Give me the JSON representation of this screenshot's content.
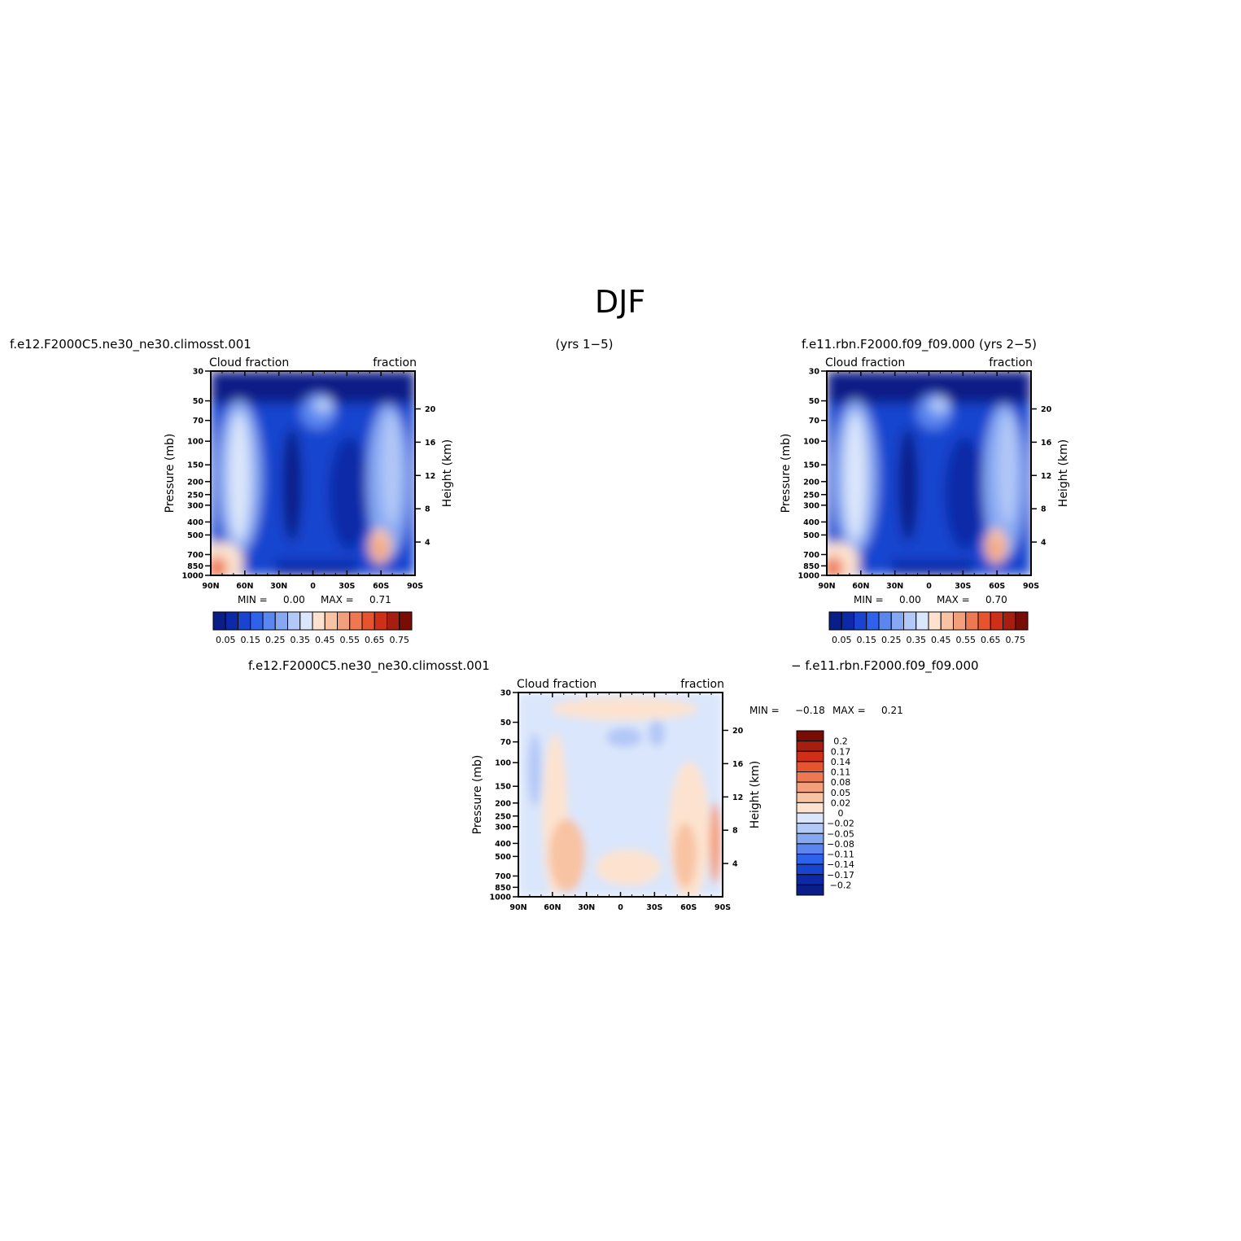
{
  "page_title": "DJF",
  "headers": {
    "left_case": "f.e12.F2000C5.ne30_ne30.climosst.001",
    "middle_years": "(yrs 1−5)",
    "right_case": "f.e11.rbn.F2000.f09_f09.000 (yrs 2−5)",
    "diff_left": "f.e12.F2000C5.ne30_ne30.climosst.001",
    "diff_right": "− f.e11.rbn.F2000.f09_f09.000"
  },
  "chart_data": [
    {
      "type": "heatmap",
      "panel": "case1",
      "left_label": "Cloud fraction",
      "right_label": "fraction",
      "ylabel": "Pressure (mb)",
      "y2label": "Height (km)",
      "x_ticks": [
        "90N",
        "60N",
        "30N",
        "0",
        "30S",
        "60S",
        "90S"
      ],
      "y_ticks": [
        "30",
        "50",
        "70",
        "100",
        "150",
        "200",
        "250",
        "300",
        "400",
        "500",
        "700",
        "850",
        "1000"
      ],
      "y2_ticks": [
        "20",
        "16",
        "12",
        "8",
        "4"
      ],
      "min_label": "MIN =",
      "min_value": "0.00",
      "max_label": "MAX =",
      "max_value": "0.71",
      "colorbar_labels": [
        "0.05",
        "0.15",
        "0.25",
        "0.35",
        "0.45",
        "0.55",
        "0.65",
        "0.75"
      ],
      "colorbar_colors": [
        "#0a1e87",
        "#0c2aa8",
        "#1844cf",
        "#2f62ea",
        "#5a86ef",
        "#86a8f2",
        "#b2c8f7",
        "#dae6fb",
        "#fde3cf",
        "#f8c3a3",
        "#f49f7b",
        "#ee7852",
        "#e6542f",
        "#ce2f16",
        "#a51e10",
        "#7a0c06"
      ]
    },
    {
      "type": "heatmap",
      "panel": "case2",
      "left_label": "Cloud fraction",
      "right_label": "fraction",
      "ylabel": "Pressure (mb)",
      "y2label": "Height (km)",
      "x_ticks": [
        "90N",
        "60N",
        "30N",
        "0",
        "30S",
        "60S",
        "90S"
      ],
      "y_ticks": [
        "30",
        "50",
        "70",
        "100",
        "150",
        "200",
        "250",
        "300",
        "400",
        "500",
        "700",
        "850",
        "1000"
      ],
      "y2_ticks": [
        "20",
        "16",
        "12",
        "8",
        "4"
      ],
      "min_label": "MIN =",
      "min_value": "0.00",
      "max_label": "MAX =",
      "max_value": "0.70",
      "colorbar_labels": [
        "0.05",
        "0.15",
        "0.25",
        "0.35",
        "0.45",
        "0.55",
        "0.65",
        "0.75"
      ],
      "colorbar_colors": [
        "#0a1e87",
        "#0c2aa8",
        "#1844cf",
        "#2f62ea",
        "#5a86ef",
        "#86a8f2",
        "#b2c8f7",
        "#dae6fb",
        "#fde3cf",
        "#f8c3a3",
        "#f49f7b",
        "#ee7852",
        "#e6542f",
        "#ce2f16",
        "#a51e10",
        "#7a0c06"
      ]
    },
    {
      "type": "heatmap",
      "panel": "difference",
      "left_label": "Cloud fraction",
      "right_label": "fraction",
      "ylabel": "Pressure (mb)",
      "y2label": "Height (km)",
      "x_ticks": [
        "90N",
        "60N",
        "30N",
        "0",
        "30S",
        "60S",
        "90S"
      ],
      "y_ticks": [
        "30",
        "50",
        "70",
        "100",
        "150",
        "200",
        "250",
        "300",
        "400",
        "500",
        "700",
        "850",
        "1000"
      ],
      "y2_ticks": [
        "20",
        "16",
        "12",
        "8",
        "4"
      ],
      "min_label": "MIN =",
      "min_value": "−0.18",
      "max_label": "MAX =",
      "max_value": "0.21",
      "colorbar_labels": [
        "0.2",
        "0.17",
        "0.14",
        "0.11",
        "0.08",
        "0.05",
        "0.02",
        "0",
        "−0.02",
        "−0.05",
        "−0.08",
        "−0.11",
        "−0.14",
        "−0.17",
        "−0.2"
      ],
      "colorbar_colors": [
        "#7a0c06",
        "#a51e10",
        "#ce2f16",
        "#e6542f",
        "#ee7852",
        "#f49f7b",
        "#f8c3a3",
        "#fde3cf",
        "#dae6fb",
        "#b2c8f7",
        "#86a8f2",
        "#5a86ef",
        "#2f62ea",
        "#1844cf",
        "#0c2aa8",
        "#0a1e87"
      ]
    }
  ]
}
